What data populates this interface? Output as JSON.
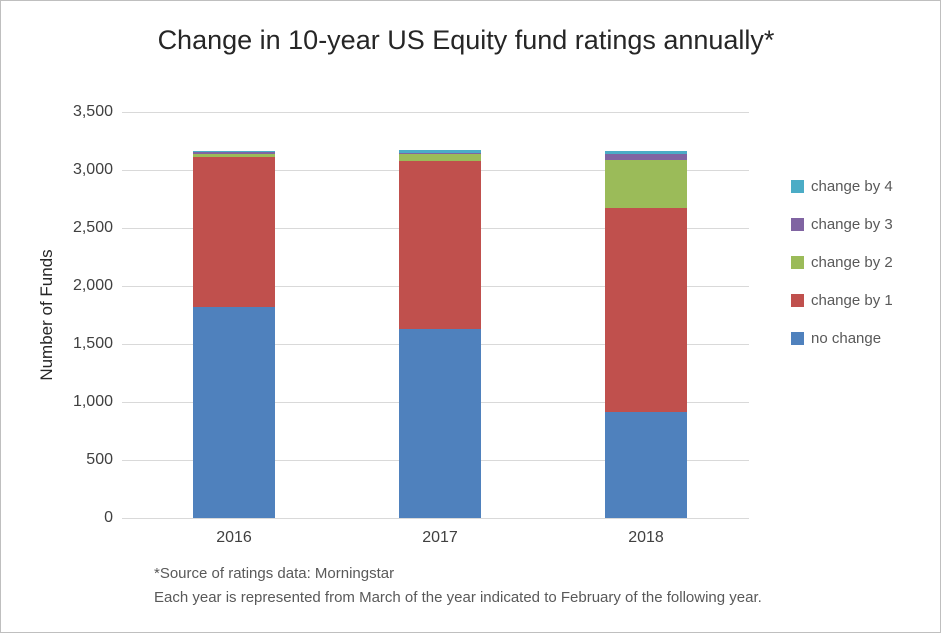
{
  "window": {
    "background": "#ffffff",
    "border_color": "#bfbfbf"
  },
  "chart_data": {
    "type": "bar",
    "stacked": true,
    "title": "Change in 10-year US Equity fund ratings annually*",
    "ylabel": "Number of Funds",
    "xlabel": "",
    "categories": [
      "2016",
      "2017",
      "2018"
    ],
    "series": [
      {
        "name": "no change",
        "color": "#4F81BD",
        "values": [
          1820,
          1630,
          910
        ]
      },
      {
        "name": "change by 1",
        "color": "#C0504D",
        "values": [
          1295,
          1445,
          1765
        ]
      },
      {
        "name": "change by 2",
        "color": "#9BBB59",
        "values": [
          20,
          65,
          410
        ]
      },
      {
        "name": "change by 3",
        "color": "#8064A2",
        "values": [
          20,
          5,
          55
        ]
      },
      {
        "name": "change by 4",
        "color": "#4BACC6",
        "values": [
          5,
          25,
          25
        ]
      }
    ],
    "ylim": [
      0,
      3500
    ],
    "ytick_step": 500,
    "ytick_labels": [
      "0",
      "500",
      "1,000",
      "1,500",
      "2,000",
      "2,500",
      "3,000",
      "3,500"
    ],
    "grid": true,
    "gridline_color": "#d9d9d9",
    "legend_position": "right",
    "legend_order_top_to_bottom": [
      "change by 4",
      "change by 3",
      "change by 2",
      "change by 1",
      "no change"
    ]
  },
  "footnotes": {
    "line1": "*Source of ratings data: Morningstar",
    "line2": "Each year is represented from March of the year indicated to February of the following year."
  }
}
